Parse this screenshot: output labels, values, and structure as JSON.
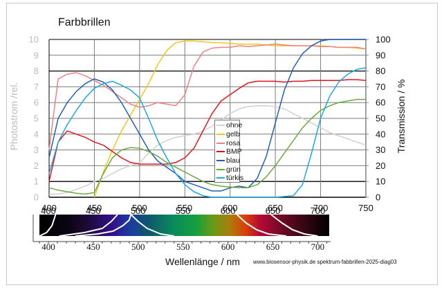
{
  "title": "Farbbrillen",
  "y_left_label": "Photostrom /rel.",
  "y_right_label": "Transmission / %",
  "x_label": "Wellenlänge / nm",
  "credit": "www.biosensor-physik.de  spektrum-fabbrillen-2025-diag03",
  "y_left_ticks": [
    "0",
    "1",
    "2",
    "3",
    "4",
    "5",
    "6",
    "7",
    "8",
    "9",
    "10"
  ],
  "y_right_ticks": [
    "0",
    "10",
    "20",
    "30",
    "40",
    "50",
    "60",
    "70",
    "80",
    "90",
    "100"
  ],
  "x_ticks": [
    "400",
    "450",
    "500",
    "550",
    "600",
    "650",
    "700",
    "750"
  ],
  "spectrum_ticks": [
    "400",
    "450",
    "500",
    "550",
    "600",
    "650",
    "700"
  ],
  "legend": [
    {
      "label": "ohne",
      "color": "#d3d3d3"
    },
    {
      "label": "gelb",
      "color": "#f5c518"
    },
    {
      "label": "rosa",
      "color": "#f08080"
    },
    {
      "label": "BMP",
      "color": "#e0141e"
    },
    {
      "label": "blau",
      "color": "#1f5fb4"
    },
    {
      "label": "grün",
      "color": "#6aaa3c"
    },
    {
      "label": "türkis",
      "color": "#1aa8e0"
    }
  ],
  "chart_data": {
    "type": "line",
    "title": "Farbbrillen",
    "xlabel": "Wellenlänge / nm",
    "ylabel": "Photostrom /rel.",
    "ylabel_right": "Transmission / %",
    "xlim": [
      400,
      750
    ],
    "ylim": [
      0,
      10
    ],
    "ylim_right": [
      0,
      100
    ],
    "grid": true,
    "legend_position": "inside-center",
    "x": [
      400,
      410,
      420,
      430,
      440,
      450,
      460,
      470,
      480,
      490,
      500,
      510,
      520,
      530,
      540,
      550,
      560,
      570,
      580,
      590,
      600,
      610,
      620,
      630,
      640,
      650,
      660,
      670,
      680,
      690,
      700,
      710,
      720,
      730,
      740,
      750
    ],
    "series": [
      {
        "name": "ohne",
        "color": "#d3d3d3",
        "values": [
          0.2,
          0.2,
          0.3,
          0.5,
          0.7,
          1.0,
          1.2,
          1.5,
          1.8,
          2.0,
          2.2,
          2.8,
          3.3,
          3.6,
          3.8,
          3.9,
          4.0,
          4.2,
          4.5,
          4.9,
          5.3,
          5.6,
          5.75,
          5.8,
          5.8,
          5.75,
          5.6,
          5.3,
          5.0,
          4.7,
          4.4,
          4.1,
          3.9,
          3.7,
          3.5,
          3.3
        ]
      },
      {
        "name": "gelb",
        "color": "#f5c518",
        "values": [
          null,
          null,
          null,
          null,
          null,
          0.0,
          1.6,
          3.0,
          4.2,
          5.2,
          6.2,
          7.2,
          8.4,
          9.3,
          9.8,
          9.9,
          9.9,
          9.85,
          9.8,
          9.8,
          9.75,
          9.7,
          9.7,
          9.7,
          9.65,
          9.6,
          9.6,
          9.6,
          9.6,
          9.6,
          9.6,
          9.55,
          9.5,
          9.5,
          9.45,
          9.4
        ]
      },
      {
        "name": "rosa",
        "color": "#f08080",
        "values": [
          3.0,
          7.5,
          7.8,
          7.9,
          7.7,
          7.4,
          7.1,
          6.7,
          6.3,
          5.9,
          5.7,
          5.8,
          6.0,
          5.9,
          5.8,
          6.5,
          8.3,
          9.2,
          9.45,
          9.5,
          9.5,
          9.6,
          9.55,
          9.6,
          9.65,
          9.7,
          9.65,
          9.6,
          9.6,
          9.6,
          9.55,
          9.55,
          9.5,
          9.5,
          9.5,
          9.4
        ]
      },
      {
        "name": "BMP",
        "color": "#e0141e",
        "values": [
          1.0,
          3.5,
          4.2,
          4.0,
          3.8,
          3.5,
          3.3,
          2.9,
          2.5,
          2.2,
          2.1,
          2.1,
          2.1,
          2.1,
          2.2,
          2.5,
          3.1,
          4.2,
          5.3,
          6.1,
          6.5,
          6.9,
          7.25,
          7.35,
          7.35,
          7.35,
          7.3,
          7.35,
          7.35,
          7.4,
          7.4,
          7.4,
          7.4,
          7.45,
          7.45,
          7.4
        ]
      },
      {
        "name": "blau",
        "color": "#1f5fb4",
        "values": [
          2.5,
          5.0,
          6.0,
          6.7,
          7.2,
          7.5,
          7.3,
          6.8,
          6.0,
          5.0,
          4.0,
          3.0,
          2.3,
          1.9,
          1.5,
          1.0,
          0.8,
          0.6,
          0.4,
          0.4,
          0.6,
          0.7,
          0.6,
          1.2,
          2.6,
          4.7,
          6.8,
          8.2,
          9.1,
          9.6,
          9.9,
          10.0,
          10.0,
          10.0,
          10.0,
          10.0
        ]
      },
      {
        "name": "grün",
        "color": "#6aaa3c",
        "values": [
          0.6,
          0.45,
          0.35,
          0.25,
          0.2,
          0.3,
          1.5,
          2.5,
          3.0,
          3.15,
          3.1,
          2.9,
          2.6,
          2.2,
          1.9,
          1.6,
          1.3,
          1.0,
          0.8,
          0.7,
          0.65,
          0.6,
          0.6,
          0.8,
          1.3,
          2.0,
          2.8,
          3.6,
          4.4,
          5.0,
          5.5,
          5.8,
          6.0,
          6.1,
          6.2,
          6.2
        ]
      },
      {
        "name": "türkis",
        "color": "#1aa8e0",
        "values": [
          1.5,
          3.5,
          4.6,
          5.5,
          6.3,
          6.9,
          7.2,
          7.35,
          7.1,
          6.8,
          6.3,
          5.0,
          3.6,
          2.5,
          1.5,
          0.8,
          0.35,
          0.1,
          0.0,
          0.0,
          0.0,
          0.0,
          0.0,
          0.0,
          0.0,
          0.0,
          0.05,
          0.1,
          0.8,
          2.8,
          5.0,
          6.4,
          7.3,
          7.8,
          8.1,
          8.2
        ]
      }
    ]
  }
}
